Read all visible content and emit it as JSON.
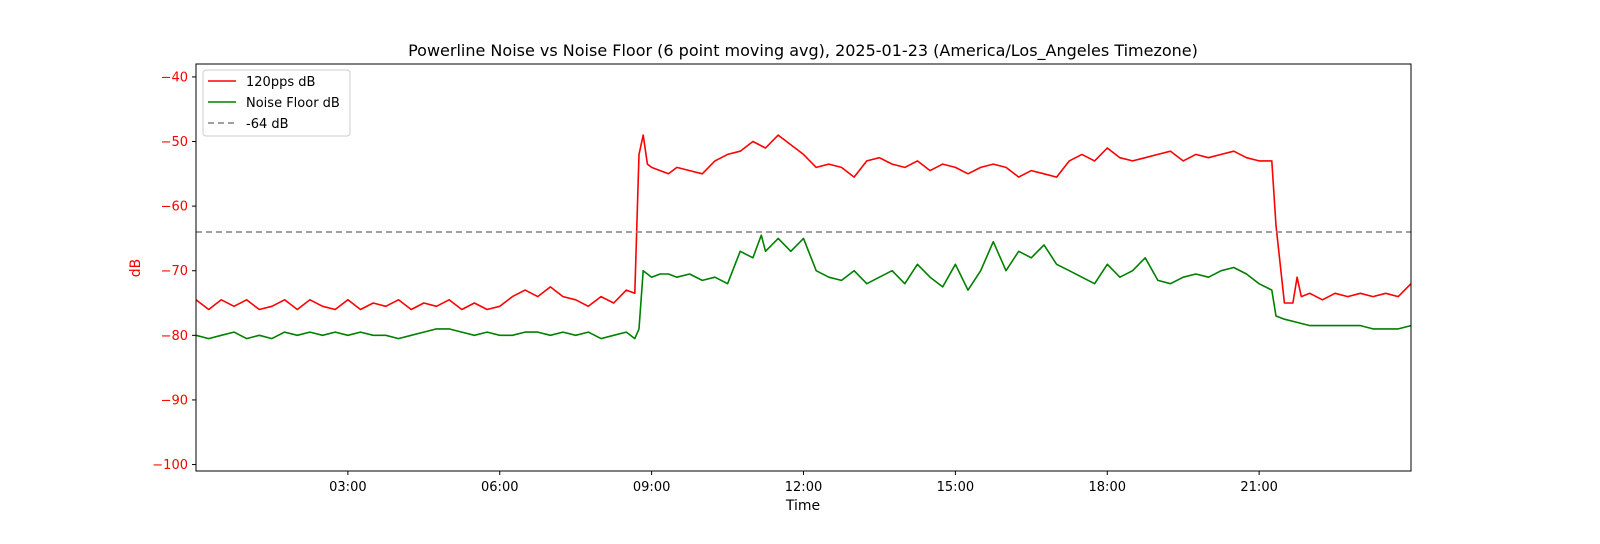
{
  "chart_data": {
    "type": "line",
    "title": "Powerline Noise vs Noise Floor (6 point moving avg), 2025-01-23 (America/Los_Angeles Timezone)",
    "xlabel": "Time",
    "ylabel": "dB",
    "xlim_hours": [
      0,
      24
    ],
    "ylim": [
      -101,
      -38
    ],
    "x_ticks": [
      {
        "hour": 3,
        "label": "03:00"
      },
      {
        "hour": 6,
        "label": "06:00"
      },
      {
        "hour": 9,
        "label": "09:00"
      },
      {
        "hour": 12,
        "label": "12:00"
      },
      {
        "hour": 15,
        "label": "15:00"
      },
      {
        "hour": 18,
        "label": "18:00"
      },
      {
        "hour": 21,
        "label": "21:00"
      }
    ],
    "y_ticks": [
      {
        "value": -40,
        "label": "−40"
      },
      {
        "value": -50,
        "label": "−50"
      },
      {
        "value": -60,
        "label": "−60"
      },
      {
        "value": -70,
        "label": "−70"
      },
      {
        "value": -80,
        "label": "−80"
      },
      {
        "value": -90,
        "label": "−90"
      },
      {
        "value": -100,
        "label": "−100"
      }
    ],
    "grid": false,
    "legend_position": "top-left",
    "ylabel_color": "#ff0000",
    "series": [
      {
        "name": "120pps dB",
        "color": "#ff0000",
        "style": "solid",
        "x": [
          "00:00",
          "00:15",
          "00:30",
          "00:45",
          "01:00",
          "01:15",
          "01:30",
          "01:45",
          "02:00",
          "02:15",
          "02:30",
          "02:45",
          "03:00",
          "03:15",
          "03:30",
          "03:45",
          "04:00",
          "04:15",
          "04:30",
          "04:45",
          "05:00",
          "05:15",
          "05:30",
          "05:45",
          "06:00",
          "06:15",
          "06:30",
          "06:45",
          "07:00",
          "07:15",
          "07:30",
          "07:45",
          "08:00",
          "08:15",
          "08:30",
          "08:40",
          "08:45",
          "08:50",
          "08:55",
          "09:00",
          "09:10",
          "09:20",
          "09:30",
          "09:45",
          "10:00",
          "10:15",
          "10:30",
          "10:45",
          "11:00",
          "11:15",
          "11:30",
          "11:45",
          "12:00",
          "12:15",
          "12:30",
          "12:45",
          "13:00",
          "13:15",
          "13:30",
          "13:45",
          "14:00",
          "14:15",
          "14:30",
          "14:45",
          "15:00",
          "15:15",
          "15:30",
          "15:45",
          "16:00",
          "16:15",
          "16:30",
          "16:45",
          "17:00",
          "17:15",
          "17:30",
          "17:45",
          "18:00",
          "18:15",
          "18:30",
          "18:45",
          "19:00",
          "19:15",
          "19:30",
          "19:45",
          "20:00",
          "20:15",
          "20:30",
          "20:45",
          "21:00",
          "21:15",
          "21:20",
          "21:30",
          "21:40",
          "21:45",
          "21:50",
          "22:00",
          "22:15",
          "22:30",
          "22:45",
          "23:00",
          "23:15",
          "23:30",
          "23:45",
          "24:00"
        ],
        "y": [
          -74.5,
          -76,
          -74.5,
          -75.5,
          -74.5,
          -76,
          -75.5,
          -74.5,
          -76,
          -74.5,
          -75.5,
          -76,
          -74.5,
          -76,
          -75,
          -75.5,
          -74.5,
          -76,
          -75,
          -75.5,
          -74.5,
          -76,
          -75,
          -76,
          -75.5,
          -74,
          -73,
          -74,
          -72.5,
          -74,
          -74.5,
          -75.5,
          -74,
          -75,
          -73,
          -73.5,
          -52,
          -49,
          -53.5,
          -54,
          -54.5,
          -55,
          -54,
          -54.5,
          -55,
          -53,
          -52,
          -51.5,
          -50,
          -51,
          -49,
          -50.5,
          -52,
          -54,
          -53.5,
          -54,
          -55.5,
          -53,
          -52.5,
          -53.5,
          -54,
          -53,
          -54.5,
          -53.5,
          -54,
          -55,
          -54,
          -53.5,
          -54,
          -55.5,
          -54.5,
          -55,
          -55.5,
          -53,
          -52,
          -53,
          -51,
          -52.5,
          -53,
          -52.5,
          -52,
          -51.5,
          -53,
          -52,
          -52.5,
          -52,
          -51.5,
          -52.5,
          -53,
          -53,
          -63,
          -75,
          -75,
          -71,
          -74,
          -73.5,
          -74.5,
          -73.5,
          -74,
          -73.5,
          -74,
          -73.5,
          -74,
          -72
        ]
      },
      {
        "name": "Noise Floor dB",
        "color": "#008000",
        "style": "solid",
        "x": [
          "00:00",
          "00:15",
          "00:30",
          "00:45",
          "01:00",
          "01:15",
          "01:30",
          "01:45",
          "02:00",
          "02:15",
          "02:30",
          "02:45",
          "03:00",
          "03:15",
          "03:30",
          "03:45",
          "04:00",
          "04:15",
          "04:30",
          "04:45",
          "05:00",
          "05:15",
          "05:30",
          "05:45",
          "06:00",
          "06:15",
          "06:30",
          "06:45",
          "07:00",
          "07:15",
          "07:30",
          "07:45",
          "08:00",
          "08:15",
          "08:30",
          "08:40",
          "08:45",
          "08:50",
          "08:55",
          "09:00",
          "09:10",
          "09:20",
          "09:30",
          "09:45",
          "10:00",
          "10:15",
          "10:30",
          "10:45",
          "11:00",
          "11:10",
          "11:15",
          "11:30",
          "11:45",
          "12:00",
          "12:15",
          "12:30",
          "12:45",
          "13:00",
          "13:15",
          "13:30",
          "13:45",
          "14:00",
          "14:15",
          "14:30",
          "14:45",
          "15:00",
          "15:15",
          "15:30",
          "15:45",
          "16:00",
          "16:15",
          "16:30",
          "16:45",
          "17:00",
          "17:15",
          "17:30",
          "17:45",
          "18:00",
          "18:15",
          "18:30",
          "18:45",
          "19:00",
          "19:15",
          "19:30",
          "19:45",
          "20:00",
          "20:15",
          "20:30",
          "20:45",
          "21:00",
          "21:15",
          "21:20",
          "21:30",
          "21:45",
          "22:00",
          "22:15",
          "22:30",
          "22:45",
          "23:00",
          "23:15",
          "23:30",
          "23:45",
          "24:00"
        ],
        "y": [
          -80,
          -80.5,
          -80,
          -79.5,
          -80.5,
          -80,
          -80.5,
          -79.5,
          -80,
          -79.5,
          -80,
          -79.5,
          -80,
          -79.5,
          -80,
          -80,
          -80.5,
          -80,
          -79.5,
          -79,
          -79,
          -79.5,
          -80,
          -79.5,
          -80,
          -80,
          -79.5,
          -79.5,
          -80,
          -79.5,
          -80,
          -79.5,
          -80.5,
          -80,
          -79.5,
          -80.5,
          -79,
          -70,
          -70.5,
          -71,
          -70.5,
          -70.5,
          -71,
          -70.5,
          -71.5,
          -71,
          -72,
          -67,
          -68,
          -64.5,
          -67,
          -65,
          -67,
          -65,
          -70,
          -71,
          -71.5,
          -70,
          -72,
          -71,
          -70,
          -72,
          -69,
          -71,
          -72.5,
          -69,
          -73,
          -70,
          -65.5,
          -70,
          -67,
          -68,
          -66,
          -69,
          -70,
          -71,
          -72,
          -69,
          -71,
          -70,
          -68,
          -71.5,
          -72,
          -71,
          -70.5,
          -71,
          -70,
          -69.5,
          -70.5,
          -72,
          -73,
          -77,
          -77.5,
          -78,
          -78.5,
          -78.5,
          -78.5,
          -78.5,
          -78.5,
          -79,
          -79,
          -79,
          -78.5
        ]
      },
      {
        "name": "-64 dB",
        "color": "#808080",
        "style": "dashed",
        "x": [
          "00:00",
          "24:00"
        ],
        "y": [
          -64,
          -64
        ]
      }
    ]
  }
}
